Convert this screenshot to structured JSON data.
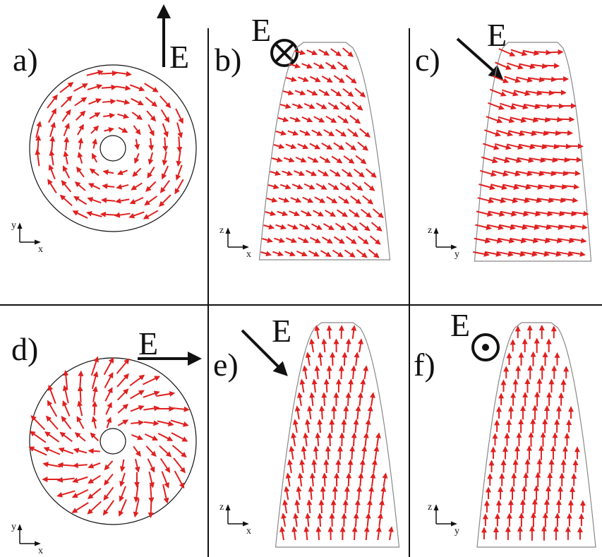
{
  "panels": [
    {
      "label": "a)",
      "field": "E",
      "axes": {
        "vertical": "y",
        "horizontal": "x"
      }
    },
    {
      "label": "b)",
      "field": "E",
      "axes": {
        "vertical": "z",
        "horizontal": "x"
      }
    },
    {
      "label": "c)",
      "field": "E",
      "axes": {
        "vertical": "z",
        "horizontal": "y"
      }
    },
    {
      "label": "d)",
      "field": "E",
      "axes": {
        "vertical": "y",
        "horizontal": "x"
      }
    },
    {
      "label": "e)",
      "field": "E",
      "axes": {
        "vertical": "z",
        "horizontal": "x"
      }
    },
    {
      "label": "f)",
      "field": "E",
      "axes": {
        "vertical": "z",
        "horizontal": "y"
      }
    }
  ]
}
